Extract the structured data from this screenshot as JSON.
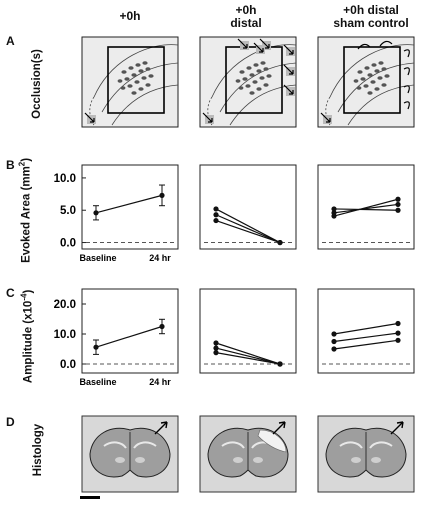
{
  "panels": {
    "a_letter": "A",
    "b_letter": "B",
    "c_letter": "C",
    "d_letter": "D"
  },
  "columns": {
    "col1": "+0h",
    "col2_l1": "+0h",
    "col2_l2": "distal",
    "col3_l1": "+0h distal",
    "col3_l2": "sham control"
  },
  "row_labels": {
    "occlusion": "Occlusion(s)",
    "evoked": "Evoked Area (mm",
    "evoked_sup": "2",
    "evoked_close": ")",
    "amplitude": "Amplitude (x10",
    "amplitude_sup": "-4",
    "amplitude_close": ")",
    "histology": "Histology"
  },
  "colors": {
    "line": "#111111",
    "dash": "#555555",
    "panel_fill": "#e9e9e9",
    "brain_fill": "#bdbdbd"
  },
  "chart_data": [
    {
      "type": "line",
      "id": "B1",
      "ylim": [
        -1,
        12
      ],
      "yticks": [
        "10.0",
        "5.0",
        "0.0"
      ],
      "ytick_values": [
        10,
        5,
        0
      ],
      "categories": [
        "Baseline",
        "24 hr"
      ],
      "series": [
        {
          "values": [
            4.6,
            7.3
          ],
          "err": [
            1.1,
            1.6
          ]
        }
      ]
    },
    {
      "type": "line",
      "id": "B2",
      "ylim": [
        -1,
        12
      ],
      "series": [
        {
          "values": [
            5.2,
            0.0
          ]
        },
        {
          "values": [
            4.3,
            0.0
          ]
        },
        {
          "values": [
            3.4,
            0.0
          ]
        }
      ]
    },
    {
      "type": "line",
      "id": "B3",
      "ylim": [
        -1,
        12
      ],
      "series": [
        {
          "values": [
            5.2,
            5.0
          ]
        },
        {
          "values": [
            4.6,
            5.9
          ]
        },
        {
          "values": [
            4.1,
            6.7
          ]
        }
      ]
    },
    {
      "type": "line",
      "id": "C1",
      "ylim": [
        -3,
        25
      ],
      "yticks": [
        "20.0",
        "10.0",
        "0.0"
      ],
      "ytick_values": [
        20,
        10,
        0
      ],
      "categories": [
        "Baseline",
        "24 hr"
      ],
      "series": [
        {
          "values": [
            5.6,
            12.5
          ],
          "err": [
            2.4,
            2.4
          ]
        }
      ]
    },
    {
      "type": "line",
      "id": "C2",
      "ylim": [
        -3,
        25
      ],
      "series": [
        {
          "values": [
            7.0,
            0.0
          ]
        },
        {
          "values": [
            5.3,
            0.0
          ]
        },
        {
          "values": [
            3.8,
            0.0
          ]
        }
      ]
    },
    {
      "type": "line",
      "id": "C3",
      "ylim": [
        -3,
        25
      ],
      "series": [
        {
          "values": [
            10.0,
            13.5
          ]
        },
        {
          "values": [
            7.5,
            10.3
          ]
        },
        {
          "values": [
            5.0,
            7.9
          ]
        }
      ]
    }
  ]
}
